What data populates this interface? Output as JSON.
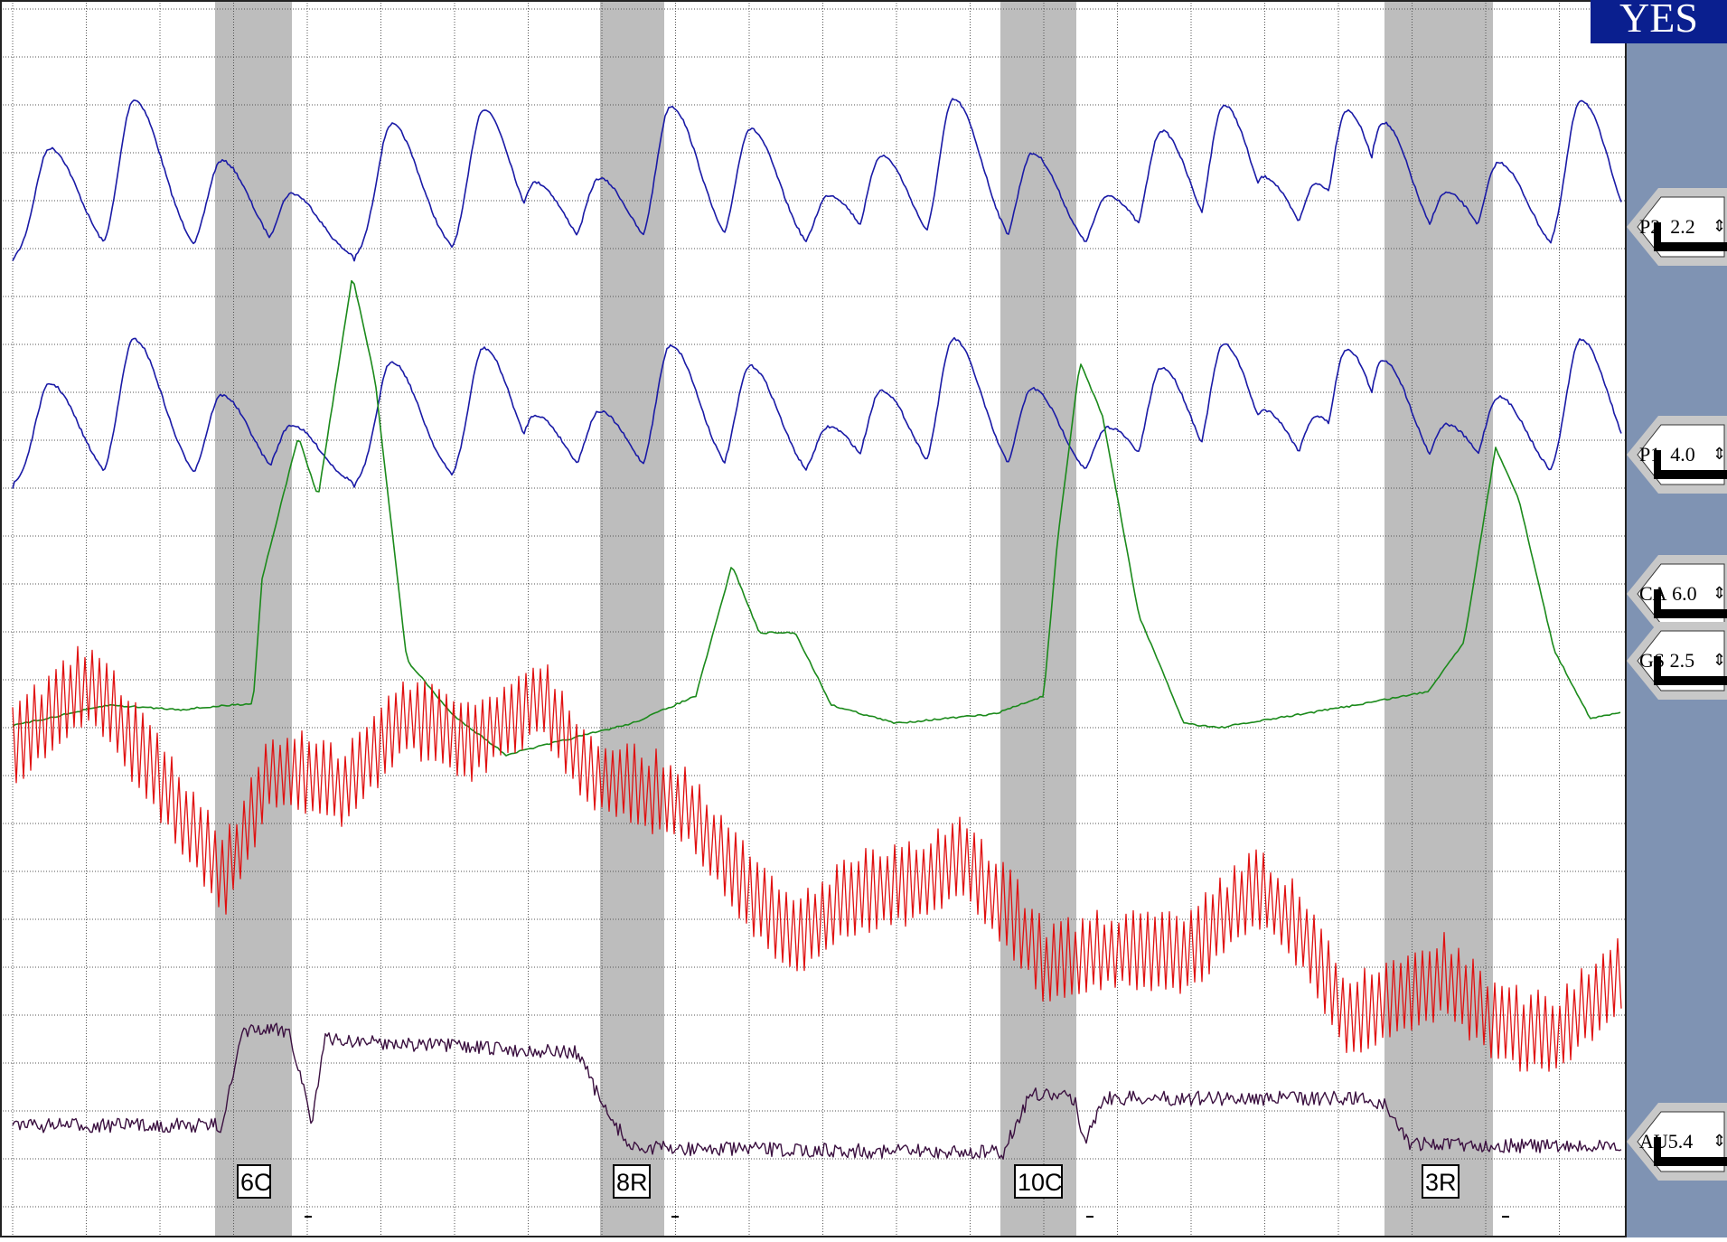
{
  "verdict": "YES",
  "channels": [
    {
      "id": "p2",
      "label": "P2",
      "gain": "2.2",
      "color": "#1a1aa6",
      "icon": "updown-arrows-icon"
    },
    {
      "id": "p1",
      "label": "P1",
      "gain": "4.0",
      "color": "#1a1aa6",
      "icon": "updown-arrows-icon"
    },
    {
      "id": "ca",
      "label": "CA",
      "gain": "6.0",
      "color": "#1b8a1b",
      "icon": "updown-arrows-icon"
    },
    {
      "id": "gs",
      "label": "GS",
      "gain": "2.5",
      "color": "#e01010",
      "icon": "updown-arrows-icon"
    },
    {
      "id": "au",
      "label": "AU",
      "gain": "5.4",
      "color": "#3b1040",
      "icon": "updown-arrows-icon"
    }
  ],
  "questions": [
    {
      "label": "6C"
    },
    {
      "label": "8R"
    },
    {
      "label": "10C"
    },
    {
      "label": "3R"
    }
  ],
  "colors": {
    "grid": "#555555",
    "shade": "#bdbdbd",
    "sidebar": "#7f93b3",
    "verdict_bg": "#0a1f8f"
  }
}
